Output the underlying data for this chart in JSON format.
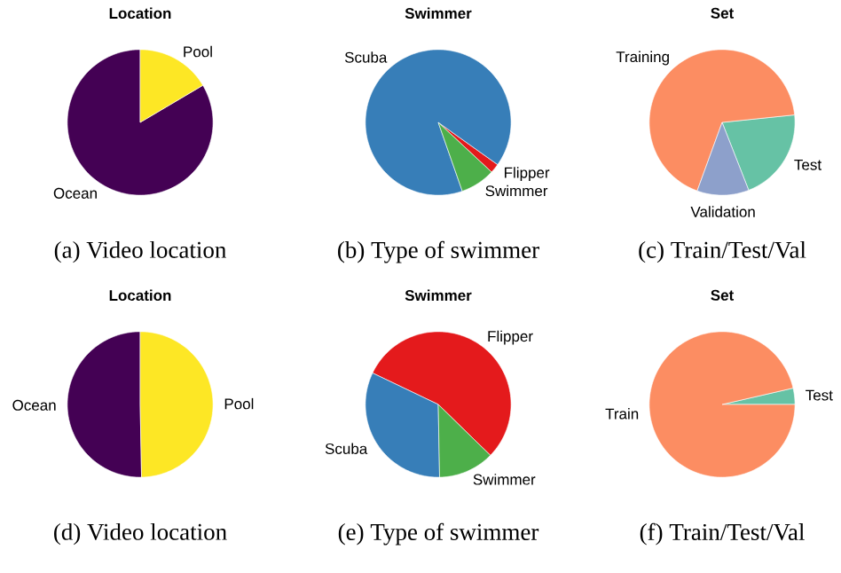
{
  "chart_data": [
    {
      "type": "pie",
      "title": "Location",
      "categories": [
        "Ocean",
        "Pool"
      ],
      "values": [
        83.5,
        16.5
      ],
      "colors": [
        "#440154",
        "#fde725"
      ],
      "annotations": [
        "(a) Video location"
      ]
    },
    {
      "type": "pie",
      "title": "Swimmer",
      "categories": [
        "Flipper",
        "Scuba",
        "Swimmer"
      ],
      "values": [
        2.1,
        90.2,
        7.7
      ],
      "colors": [
        "#e41a1c",
        "#377eb8",
        "#4daf4a"
      ],
      "annotations": [
        "(b) Type of swimmer"
      ]
    },
    {
      "type": "pie",
      "title": "Set",
      "categories": [
        "Test",
        "Training",
        "Validation"
      ],
      "values": [
        20.7,
        67.8,
        11.5
      ],
      "colors": [
        "#66c2a5",
        "#fc8d62",
        "#8da0cb"
      ],
      "annotations": [
        "(c) Train/Test/Val"
      ]
    },
    {
      "type": "pie",
      "title": "Location",
      "categories": [
        "Ocean",
        "Pool"
      ],
      "values": [
        50.3,
        49.7
      ],
      "colors": [
        "#440154",
        "#fde725"
      ],
      "annotations": [
        "(d) Video location"
      ]
    },
    {
      "type": "pie",
      "title": "Swimmer",
      "categories": [
        "Flipper",
        "Scuba",
        "Swimmer"
      ],
      "values": [
        55.2,
        32.4,
        12.4
      ],
      "colors": [
        "#e41a1c",
        "#377eb8",
        "#4daf4a"
      ],
      "annotations": [
        "(e) Type of swimmer"
      ]
    },
    {
      "type": "pie",
      "title": "Set",
      "categories": [
        "Test",
        "Train"
      ],
      "values": [
        3.6,
        96.4
      ],
      "colors": [
        "#66c2a5",
        "#fc8d62"
      ],
      "annotations": [
        "(f) Train/Test/Val"
      ]
    }
  ]
}
